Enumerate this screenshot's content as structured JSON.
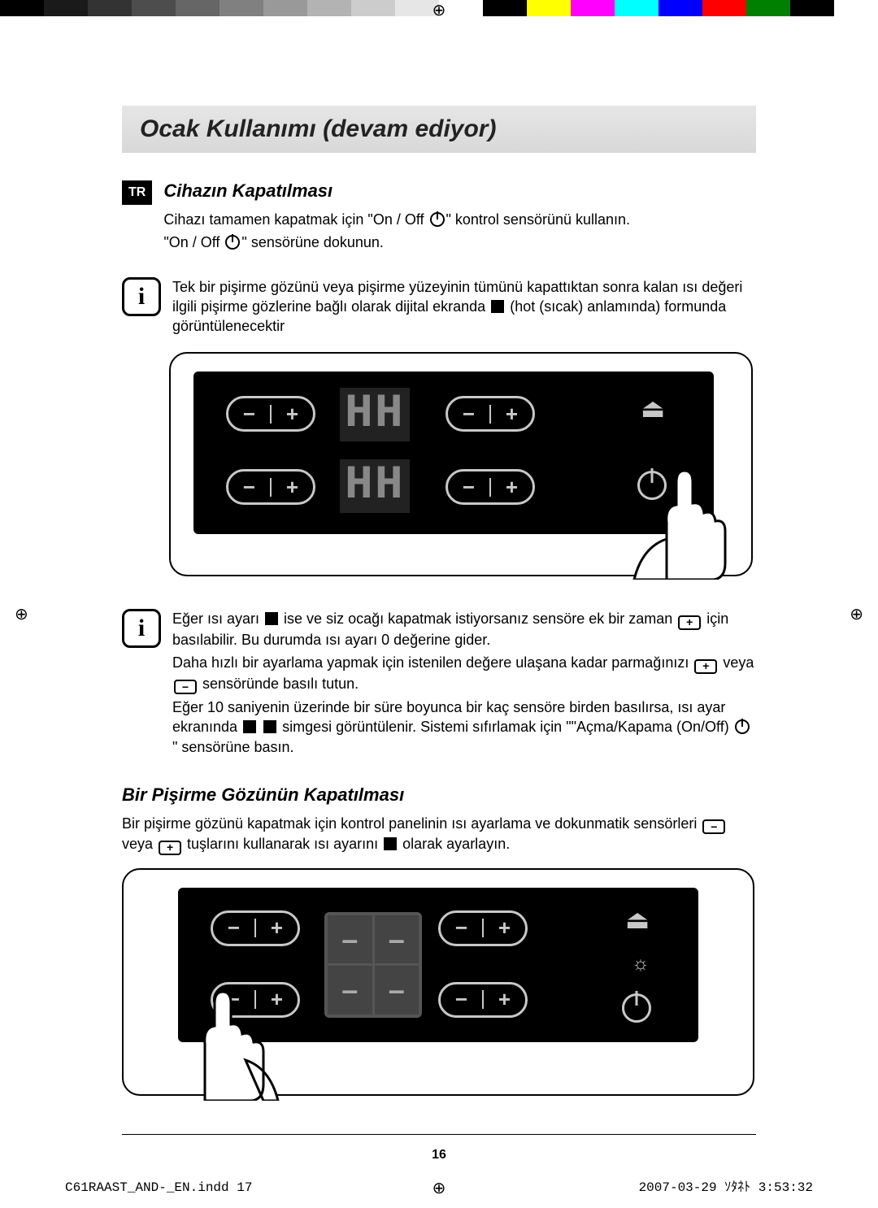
{
  "colorbar": [
    "#000",
    "#1a1a1a",
    "#333",
    "#4d4d4d",
    "#666",
    "#808080",
    "#999",
    "#b3b3b3",
    "#ccc",
    "#e6e6e6",
    "#fff",
    "#000",
    "#ffff00",
    "#ff00ff",
    "#00ffff",
    "#0000ff",
    "#ff0000",
    "#008000",
    "#000",
    "#fff"
  ],
  "lang_tag": "TR",
  "title": "Ocak Kullanımı (devam ediyor)",
  "section1_heading": "Cihazın Kapatılması",
  "section1_p1_a": "Cihazı tamamen kapatmak için \"On / Off ",
  "section1_p1_b": "\" kontrol sensörünü kullanın.",
  "section1_p2_a": "\"On / Off ",
  "section1_p2_b": "\" sensörüne dokunun.",
  "info1_a": "Tek bir pişirme gözünü veya pişirme yüzeyinin tümünü kapattıktan sonra kalan ısı değeri ilgili pişirme gözlerine bağlı olarak dijital ekranda ",
  "info1_b": " (hot (sıcak) anlamında) formunda görüntülenecektir",
  "seg_text": "H",
  "info2_a": "Eğer ısı ayarı ",
  "info2_b": " ise ve siz ocağı kapatmak istiyorsanız sensöre ek bir zaman ",
  "info2_c": " için basılabilir. Bu durumda ısı ayarı 0 değerine gider.",
  "info2_d": "Daha hızlı bir ayarlama yapmak için istenilen değere ulaşana kadar parmağınızı ",
  "info2_e": " veya ",
  "info2_f": " sensöründe basılı tutun.",
  "info2_g": "Eğer 10 saniyenin üzerinde bir süre boyunca bir kaç sensöre birden basılırsa, ısı ayar ekranında ",
  "info2_h": " simgesi görüntülenir. Sistemi sıfırlamak için \"\"Açma/Kapama (On/Off) ",
  "info2_i": " \" sensörüne basın.",
  "plus": "+",
  "minus": "−",
  "section2_heading": "Bir Pişirme Gözünün Kapatılması",
  "section2_p_a": "Bir pişirme gözünü kapatmak için kontrol panelinin  ısı ayarlama ve dokunmatik sensörleri ",
  "section2_p_b": " veya ",
  "section2_p_c": " tuşlarını kullanarak ısı ayarını ",
  "section2_p_d": " olarak ayarlayın.",
  "dash": "–",
  "page_number": "16",
  "footer_file": "C61RAAST_AND-_EN.indd   17",
  "footer_date": "2007-03-29   ｿﾀﾈﾄ 3:53:32"
}
